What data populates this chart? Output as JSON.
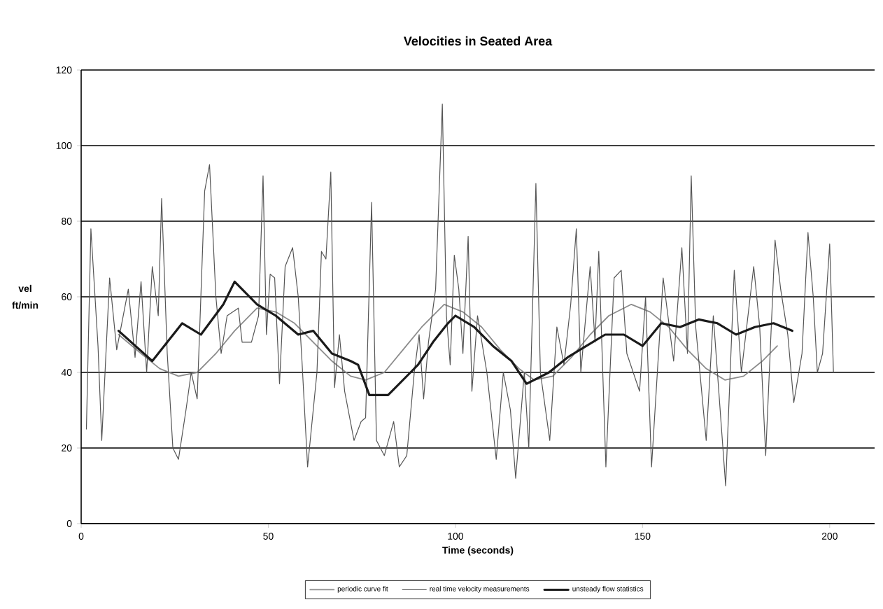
{
  "chart_data": {
    "type": "line",
    "title": "Velocities in Seated Area",
    "xlabel": "Time (seconds)",
    "ylabel": "vel ft/min",
    "xlim": [
      0,
      212
    ],
    "ylim": [
      0,
      120
    ],
    "xticks": [
      0,
      50,
      100,
      150,
      200
    ],
    "yticks": [
      0,
      20,
      40,
      60,
      80,
      100,
      120
    ],
    "grid": "y",
    "legend": "bottom",
    "marker": "none",
    "line_style": "solid",
    "series": [
      {
        "name": "periodic curve fit",
        "color": "#8c8c8c",
        "x": [
          10,
          16,
          21,
          26,
          31,
          36,
          41,
          47,
          52,
          57,
          62,
          67,
          72,
          76,
          81,
          86,
          91,
          97,
          102,
          107,
          112,
          117,
          121,
          126,
          131,
          136,
          141,
          147,
          152,
          157,
          162,
          167,
          172,
          177,
          182,
          186
        ],
        "values": [
          50,
          45,
          41,
          39,
          40,
          45,
          51,
          57,
          56,
          53,
          48,
          43,
          39,
          38,
          40,
          46,
          52,
          58,
          56,
          52,
          46,
          41,
          38,
          39,
          44,
          50,
          55,
          58,
          56,
          52,
          46,
          41,
          38,
          39,
          43,
          47
        ]
      },
      {
        "name": "real time velocity measurements",
        "color": "#555555",
        "x": [
          1.4,
          2.6,
          4.5,
          5.5,
          7.6,
          9.5,
          12.6,
          14.4,
          16,
          17.5,
          19,
          20.6,
          21.5,
          23,
          24.5,
          26,
          28,
          29.4,
          31,
          33,
          34.3,
          36,
          37.4,
          39,
          42,
          43,
          45.5,
          47.4,
          48.6,
          49.5,
          50.5,
          51.7,
          53,
          54.5,
          56.5,
          58,
          59,
          60.5,
          63,
          64.2,
          65.4,
          66.7,
          67.7,
          69,
          70.4,
          72.9,
          74.8,
          76,
          77.6,
          78.9,
          81,
          83.5,
          85,
          87,
          89,
          90.3,
          91.5,
          92.8,
          94.7,
          96.5,
          97.6,
          98.6,
          99.7,
          100.9,
          102,
          103.4,
          104.4,
          105.9,
          108.4,
          110.9,
          112.8,
          114.7,
          116.1,
          118.4,
          119.6,
          121.5,
          122.7,
          125.2,
          127.1,
          129,
          130.8,
          132.3,
          133.5,
          136,
          137.3,
          138.3,
          140.2,
          142.4,
          144.3,
          145.8,
          149.2,
          150.8,
          152.4,
          155.5,
          158.3,
          160.5,
          162,
          163,
          164.2,
          167,
          168.9,
          172.2,
          174.5,
          176.4,
          179.7,
          181.3,
          182.9,
          185.4,
          186.9,
          188.8,
          190.4,
          192.6,
          194.2,
          195.6,
          196.7,
          198.1,
          200,
          201
        ],
        "values": [
          25,
          78,
          47,
          22,
          65,
          46,
          62,
          44,
          64,
          40,
          68,
          55,
          86,
          45,
          20,
          17,
          30,
          40,
          33,
          88,
          95,
          60,
          45,
          55,
          57,
          48,
          48,
          55,
          92,
          50,
          66,
          65,
          37,
          68,
          73,
          60,
          43,
          15,
          40,
          72,
          70,
          93,
          36,
          50,
          35,
          22,
          27,
          28,
          85,
          22,
          18,
          27,
          15,
          18,
          40,
          50,
          33,
          48,
          62,
          111,
          55,
          42,
          71,
          62,
          45,
          76,
          35,
          55,
          40,
          17,
          40,
          30,
          12,
          40,
          20,
          90,
          40,
          22,
          52,
          42,
          58,
          78,
          40,
          68,
          48,
          72,
          15,
          65,
          67,
          45,
          35,
          60,
          15,
          65,
          43,
          73,
          45,
          92,
          52,
          22,
          55,
          10,
          67,
          40,
          68,
          52,
          18,
          75,
          62,
          50,
          32,
          45,
          77,
          60,
          40,
          45,
          74,
          40
        ]
      },
      {
        "name": "unsteady flow statistics",
        "color": "#1a1a1a",
        "x": [
          10,
          19,
          23,
          27,
          32,
          38,
          41,
          47,
          52,
          58,
          62,
          67,
          72,
          74,
          77,
          82,
          88,
          90,
          94,
          98,
          100,
          105,
          110,
          115,
          119,
          125,
          130,
          135,
          140,
          145,
          150,
          155,
          160,
          165,
          170,
          175,
          180,
          185,
          190
        ],
        "values": [
          51,
          43,
          48,
          53,
          50,
          58,
          64,
          58,
          55,
          50,
          51,
          45,
          43,
          42,
          34,
          34,
          40,
          42,
          48,
          53,
          55,
          52,
          47,
          43,
          37,
          40,
          44,
          47,
          50,
          50,
          47,
          53,
          52,
          54,
          53,
          50,
          52,
          53,
          51
        ]
      }
    ]
  }
}
